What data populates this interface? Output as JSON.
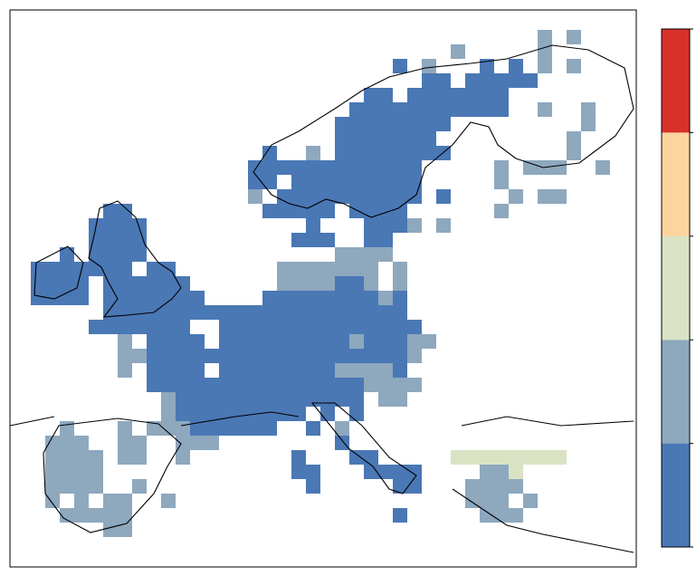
{
  "map": {
    "colorbar": {
      "colors": [
        "#4a78b5",
        "#8ea8be",
        "#d9e3c4",
        "#fdd49e",
        "#d7312a"
      ]
    },
    "cells": [
      [
        2,
        37,
        37,
        1
      ],
      [
        2,
        39,
        39,
        1
      ],
      [
        3,
        31,
        31,
        1
      ],
      [
        3,
        37,
        37,
        1
      ],
      [
        4,
        27,
        27,
        0
      ],
      [
        4,
        29,
        29,
        1
      ],
      [
        4,
        33,
        33,
        0
      ],
      [
        4,
        35,
        35,
        0
      ],
      [
        4,
        37,
        37,
        1
      ],
      [
        4,
        39,
        39,
        1
      ],
      [
        5,
        29,
        30,
        0
      ],
      [
        5,
        32,
        36,
        0
      ],
      [
        6,
        25,
        26,
        0
      ],
      [
        6,
        28,
        34,
        0
      ],
      [
        7,
        24,
        34,
        0
      ],
      [
        7,
        37,
        37,
        1
      ],
      [
        7,
        40,
        40,
        1
      ],
      [
        8,
        23,
        30,
        0
      ],
      [
        8,
        40,
        40,
        1
      ],
      [
        9,
        23,
        29,
        0
      ],
      [
        9,
        39,
        39,
        1
      ],
      [
        10,
        18,
        18,
        0
      ],
      [
        10,
        21,
        21,
        1
      ],
      [
        10,
        23,
        30,
        0
      ],
      [
        10,
        39,
        39,
        1
      ],
      [
        11,
        17,
        28,
        0
      ],
      [
        11,
        34,
        34,
        1
      ],
      [
        11,
        36,
        38,
        1
      ],
      [
        11,
        41,
        41,
        1
      ],
      [
        12,
        17,
        18,
        0
      ],
      [
        12,
        20,
        28,
        0
      ],
      [
        12,
        34,
        34,
        1
      ],
      [
        13,
        17,
        17,
        1
      ],
      [
        13,
        19,
        28,
        0
      ],
      [
        13,
        30,
        30,
        0
      ],
      [
        13,
        35,
        35,
        1
      ],
      [
        13,
        37,
        38,
        1
      ],
      [
        14,
        7,
        8,
        0
      ],
      [
        14,
        18,
        22,
        0
      ],
      [
        14,
        24,
        27,
        0
      ],
      [
        14,
        34,
        34,
        1
      ],
      [
        15,
        6,
        9,
        0
      ],
      [
        15,
        21,
        21,
        0
      ],
      [
        15,
        25,
        27,
        0
      ],
      [
        15,
        28,
        28,
        1
      ],
      [
        15,
        30,
        30,
        1
      ],
      [
        16,
        6,
        9,
        0
      ],
      [
        16,
        20,
        22,
        0
      ],
      [
        16,
        25,
        26,
        0
      ],
      [
        17,
        4,
        4,
        0
      ],
      [
        17,
        6,
        9,
        0
      ],
      [
        17,
        23,
        26,
        1
      ],
      [
        18,
        2,
        5,
        0
      ],
      [
        18,
        6,
        8,
        0
      ],
      [
        18,
        10,
        11,
        0
      ],
      [
        18,
        19,
        25,
        1
      ],
      [
        18,
        27,
        27,
        1
      ],
      [
        19,
        2,
        5,
        0
      ],
      [
        19,
        7,
        12,
        0
      ],
      [
        19,
        19,
        22,
        1
      ],
      [
        19,
        23,
        24,
        0
      ],
      [
        19,
        25,
        25,
        1
      ],
      [
        19,
        27,
        27,
        1
      ],
      [
        20,
        2,
        5,
        0
      ],
      [
        20,
        7,
        13,
        0
      ],
      [
        20,
        18,
        25,
        0
      ],
      [
        20,
        26,
        26,
        1
      ],
      [
        20,
        27,
        27,
        0
      ],
      [
        21,
        7,
        13,
        0
      ],
      [
        21,
        14,
        27,
        0
      ],
      [
        22,
        6,
        12,
        0
      ],
      [
        22,
        15,
        28,
        0
      ],
      [
        23,
        8,
        8,
        1
      ],
      [
        23,
        10,
        13,
        0
      ],
      [
        23,
        15,
        23,
        0
      ],
      [
        23,
        24,
        24,
        1
      ],
      [
        23,
        25,
        27,
        0
      ],
      [
        23,
        28,
        29,
        1
      ],
      [
        24,
        8,
        9,
        1
      ],
      [
        24,
        10,
        27,
        0
      ],
      [
        24,
        28,
        28,
        1
      ],
      [
        25,
        8,
        8,
        1
      ],
      [
        25,
        10,
        13,
        0
      ],
      [
        25,
        15,
        22,
        0
      ],
      [
        25,
        23,
        26,
        1
      ],
      [
        25,
        27,
        27,
        0
      ],
      [
        26,
        10,
        24,
        0
      ],
      [
        26,
        25,
        28,
        1
      ],
      [
        27,
        11,
        11,
        1
      ],
      [
        27,
        12,
        24,
        0
      ],
      [
        27,
        26,
        27,
        1
      ],
      [
        28,
        11,
        11,
        1
      ],
      [
        28,
        12,
        20,
        0
      ],
      [
        28,
        22,
        22,
        0
      ],
      [
        28,
        24,
        24,
        0
      ],
      [
        29,
        4,
        4,
        1
      ],
      [
        29,
        8,
        8,
        1
      ],
      [
        29,
        10,
        12,
        1
      ],
      [
        29,
        13,
        18,
        0
      ],
      [
        29,
        21,
        21,
        0
      ],
      [
        29,
        23,
        23,
        1
      ],
      [
        30,
        3,
        5,
        1
      ],
      [
        30,
        8,
        9,
        1
      ],
      [
        30,
        12,
        14,
        1
      ],
      [
        30,
        23,
        23,
        0
      ],
      [
        31,
        3,
        6,
        1
      ],
      [
        31,
        8,
        9,
        1
      ],
      [
        31,
        12,
        12,
        1
      ],
      [
        31,
        20,
        20,
        0
      ],
      [
        31,
        24,
        25,
        0
      ],
      [
        31,
        31,
        38,
        2
      ],
      [
        32,
        3,
        6,
        1
      ],
      [
        32,
        20,
        21,
        0
      ],
      [
        32,
        25,
        28,
        0
      ],
      [
        32,
        33,
        34,
        1
      ],
      [
        32,
        35,
        35,
        2
      ],
      [
        33,
        3,
        6,
        1
      ],
      [
        33,
        9,
        9,
        1
      ],
      [
        33,
        21,
        21,
        0
      ],
      [
        33,
        27,
        28,
        0
      ],
      [
        33,
        32,
        35,
        1
      ],
      [
        34,
        3,
        3,
        1
      ],
      [
        34,
        5,
        5,
        1
      ],
      [
        34,
        7,
        8,
        1
      ],
      [
        34,
        11,
        11,
        1
      ],
      [
        34,
        32,
        34,
        1
      ],
      [
        34,
        36,
        36,
        1
      ],
      [
        35,
        4,
        8,
        1
      ],
      [
        35,
        27,
        27,
        0
      ],
      [
        35,
        33,
        35,
        1
      ],
      [
        36,
        7,
        8,
        1
      ]
    ]
  }
}
